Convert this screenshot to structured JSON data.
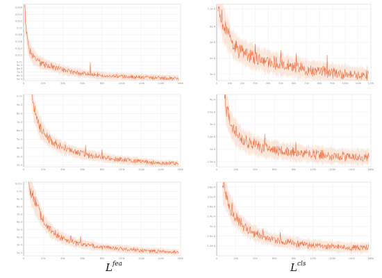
{
  "colors": {
    "line": "#f26b3a",
    "band": "#f9c9b4",
    "grid": "#e8e8e8",
    "axis": "#9a9a9a",
    "frame": "#cfcfcf"
  },
  "captions": {
    "left": {
      "base": "L",
      "sup": "fea"
    },
    "right": {
      "base": "L",
      "sup": "cls"
    }
  },
  "chart_data": [
    {
      "type": "line",
      "position": "top-left",
      "xlim": [
        0,
        160
      ],
      "ylim": [
        0.0045,
        0.027
      ],
      "xticks": [
        "0",
        "20k",
        "40k",
        "60k",
        "80k",
        "100k",
        "120k",
        "140k",
        "160k"
      ],
      "yticks": [
        "0.026",
        "0.024",
        "0.022",
        "0.02",
        "0.018",
        "0.016",
        "0.014",
        "0.012",
        "0.01",
        "9e-3",
        "8e-3",
        "7e-3",
        "6e-3",
        "5e-3"
      ],
      "series": [
        {
          "x": [
            1,
            3,
            6,
            10,
            15,
            20,
            30,
            40,
            50,
            60,
            70,
            80,
            90,
            100,
            110,
            120,
            130,
            140,
            150,
            158
          ],
          "values": [
            0.027,
            0.018,
            0.0135,
            0.0115,
            0.0102,
            0.0095,
            0.0085,
            0.0076,
            0.007,
            0.0066,
            0.0063,
            0.006,
            0.0058,
            0.0057,
            0.0056,
            0.0055,
            0.0054,
            0.0053,
            0.0052,
            0.0051
          ],
          "spikes": [
            [
              68,
              0.0098
            ],
            [
              46,
              0.0078
            ]
          ]
        }
      ]
    },
    {
      "type": "line",
      "position": "top-right",
      "xlim": [
        0,
        120
      ],
      "ylim": [
        0.00026,
        0.00074
      ],
      "xticks": [
        "0",
        "10k",
        "20k",
        "30k",
        "40k",
        "50k",
        "60k",
        "70k",
        "80k",
        "90k",
        "100k",
        "110k",
        "120k"
      ],
      "yticks": [
        "7.1e-4",
        "6e-4",
        "5e-4",
        "4e-4",
        "3e-4"
      ],
      "series": [
        {
          "x": [
            1,
            3,
            5,
            8,
            12,
            16,
            20,
            25,
            30,
            40,
            50,
            60,
            70,
            80,
            90,
            100,
            110,
            118
          ],
          "values": [
            0.00074,
            0.00069,
            0.00062,
            0.00056,
            0.000495,
            0.00046,
            0.00044,
            0.00042,
            0.000405,
            0.00038,
            0.00036,
            0.000345,
            0.00033,
            0.00032,
            0.00031,
            0.0003,
            0.000295,
            0.00029
          ],
          "spikes": [
            [
              30,
              0.00049
            ],
            [
              50,
              0.00045
            ],
            [
              62,
              0.00043
            ],
            [
              86,
              0.00042
            ]
          ]
        }
      ]
    },
    {
      "type": "line",
      "position": "middle-left",
      "xlim": [
        0,
        160
      ],
      "ylim": [
        0.0018,
        0.0102
      ],
      "xticks": [
        "0",
        "20k",
        "40k",
        "60k",
        "80k",
        "100k",
        "120k",
        "140k",
        "160k"
      ],
      "yticks": [
        "0.01",
        "9e-3",
        "8e-3",
        "7e-3",
        "6e-3",
        "5e-3",
        "4e-3",
        "3e-3",
        "2e-3"
      ],
      "series": [
        {
          "x": [
            8,
            10,
            13,
            16,
            20,
            25,
            30,
            40,
            50,
            60,
            70,
            80,
            90,
            100,
            110,
            120,
            130,
            140,
            150,
            158
          ],
          "values": [
            0.0105,
            0.0088,
            0.0075,
            0.0066,
            0.0058,
            0.0051,
            0.0046,
            0.004,
            0.0036,
            0.0033,
            0.0031,
            0.0029,
            0.0027,
            0.0026,
            0.0025,
            0.0024,
            0.0023,
            0.0022,
            0.0022,
            0.0021
          ],
          "spikes": [
            [
              63,
              0.0043
            ],
            [
              80,
              0.0038
            ]
          ]
        }
      ]
    },
    {
      "type": "line",
      "position": "middle-right",
      "xlim": [
        0,
        160
      ],
      "ylim": [
        0.00013,
        0.00042
      ],
      "xticks": [
        "0",
        "20k",
        "40k",
        "60k",
        "80k",
        "100k",
        "120k",
        "140k",
        "160k"
      ],
      "yticks": [
        "4e-4",
        "3.5e-4",
        "3e-4",
        "2.5e-4",
        "2e-4",
        "1.5e-4"
      ],
      "series": [
        {
          "x": [
            8,
            10,
            13,
            16,
            20,
            25,
            30,
            40,
            50,
            60,
            70,
            80,
            90,
            100,
            110,
            120,
            130,
            140,
            150,
            158
          ],
          "values": [
            0.00042,
            0.00037,
            0.00032,
            0.00029,
            0.000265,
            0.000245,
            0.00023,
            0.000215,
            0.000205,
            0.000198,
            0.000192,
            0.000188,
            0.000184,
            0.00018,
            0.000177,
            0.000174,
            0.000172,
            0.00017,
            0.000169,
            0.000172
          ],
          "spikes": [
            [
              50,
              0.00026
            ],
            [
              82,
              0.00023
            ]
          ]
        }
      ]
    },
    {
      "type": "line",
      "position": "bottom-left",
      "xlim": [
        0,
        160
      ],
      "ylim": [
        0.0016,
        0.0112
      ],
      "xticks": [
        "0",
        "20k",
        "40k",
        "60k",
        "80k",
        "100k",
        "120k",
        "140k",
        "160k"
      ],
      "yticks": [
        "0.011",
        "0.01",
        "9e-3",
        "8e-3",
        "7e-3",
        "6e-3",
        "5e-3",
        "4e-3",
        "3e-3",
        "2e-3"
      ],
      "series": [
        {
          "x": [
            5,
            7,
            10,
            13,
            17,
            20,
            25,
            30,
            40,
            50,
            60,
            70,
            80,
            90,
            100,
            110,
            120,
            130,
            140,
            150,
            158
          ],
          "values": [
            0.0115,
            0.0105,
            0.0092,
            0.0081,
            0.007,
            0.0062,
            0.0053,
            0.0046,
            0.0039,
            0.0034,
            0.0031,
            0.0029,
            0.0027,
            0.0026,
            0.0025,
            0.0024,
            0.0023,
            0.0022,
            0.0022,
            0.0021,
            0.0021
          ],
          "spikes": [
            [
              20,
              0.0068
            ],
            [
              48,
              0.0042
            ],
            [
              58,
              0.0041
            ]
          ]
        }
      ]
    },
    {
      "type": "line",
      "position": "bottom-right",
      "xlim": [
        0,
        160
      ],
      "ylim": [
        8e-05,
        0.00038
      ],
      "xticks": [
        "0",
        "20k",
        "40k",
        "60k",
        "80k",
        "100k",
        "120k",
        "140k",
        "160k"
      ],
      "yticks": [
        "3.6e-4",
        "3.2e-4",
        "2.8e-4",
        "2.4e-4",
        "2e-4",
        "1.6e-4",
        "1.2e-4"
      ],
      "series": [
        {
          "x": [
            6,
            8,
            11,
            14,
            18,
            22,
            27,
            32,
            40,
            50,
            60,
            70,
            80,
            90,
            100,
            110,
            120,
            130,
            140,
            150,
            158
          ],
          "values": [
            0.00038,
            0.00035,
            0.00031,
            0.00028,
            0.00025,
            0.000225,
            0.000205,
            0.000188,
            0.00017,
            0.000155,
            0.000145,
            0.000138,
            0.000132,
            0.000127,
            0.000123,
            0.00012,
            0.000117,
            0.000115,
            0.000113,
            0.000112,
            0.000114
          ],
          "spikes": [
            [
              48,
              0.00019
            ],
            [
              66,
              0.000175
            ]
          ]
        }
      ]
    }
  ]
}
